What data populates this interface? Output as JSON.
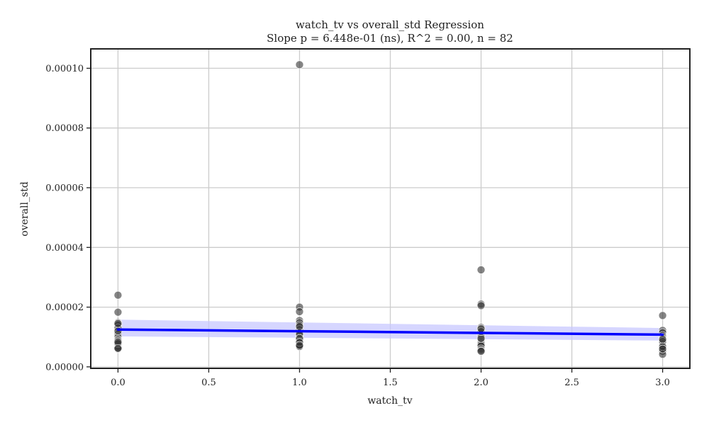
{
  "chart_data": {
    "type": "scatter",
    "title": "watch_tv vs overall_std Regression",
    "subtitle": "Slope p = 6.448e-01 (ns), R^2 = 0.00, n = 82",
    "xlabel": "watch_tv",
    "ylabel": "overall_std",
    "xlim": [
      -0.15,
      3.15
    ],
    "ylim": [
      -5e-07,
      0.0001065
    ],
    "xticks": [
      0.0,
      0.5,
      1.0,
      1.5,
      2.0,
      2.5,
      3.0
    ],
    "xtick_labels": [
      "0.0",
      "0.5",
      "1.0",
      "1.5",
      "2.0",
      "2.5",
      "3.0"
    ],
    "yticks": [
      0.0,
      2e-05,
      4e-05,
      6e-05,
      8e-05,
      0.0001
    ],
    "ytick_labels": [
      "0.00000",
      "0.00002",
      "0.00004",
      "0.00006",
      "0.00008",
      "0.00010"
    ],
    "grid": true,
    "colors": {
      "points": "#333333",
      "regression_line": "#0000ff",
      "confidence_band": "#c8c8ff",
      "grid": "#cccccc",
      "axes": "#222222"
    },
    "points": [
      {
        "x": 0,
        "y": 2.4e-05
      },
      {
        "x": 0,
        "y": 1.83e-05
      },
      {
        "x": 0,
        "y": 1.48e-05
      },
      {
        "x": 0,
        "y": 1.4e-05
      },
      {
        "x": 0,
        "y": 1.3e-05
      },
      {
        "x": 0,
        "y": 1.1e-05
      },
      {
        "x": 0,
        "y": 1e-05
      },
      {
        "x": 0,
        "y": 9.2e-06
      },
      {
        "x": 0,
        "y": 8.5e-06
      },
      {
        "x": 0,
        "y": 8e-06
      },
      {
        "x": 0,
        "y": 7.5e-06
      },
      {
        "x": 0,
        "y": 7e-06
      },
      {
        "x": 0,
        "y": 6.5e-06
      },
      {
        "x": 0,
        "y": 6e-06
      },
      {
        "x": 0,
        "y": 8.8e-06
      },
      {
        "x": 0,
        "y": 1.2e-05
      },
      {
        "x": 0,
        "y": 1.45e-05
      },
      {
        "x": 0,
        "y": 7.8e-06
      },
      {
        "x": 0,
        "y": 8.3e-06
      },
      {
        "x": 0,
        "y": 6.2e-06
      },
      {
        "x": 1,
        "y": 0.0001012
      },
      {
        "x": 1,
        "y": 2e-05
      },
      {
        "x": 1,
        "y": 1.85e-05
      },
      {
        "x": 1,
        "y": 1.55e-05
      },
      {
        "x": 1,
        "y": 1.48e-05
      },
      {
        "x": 1,
        "y": 1.4e-05
      },
      {
        "x": 1,
        "y": 1.25e-05
      },
      {
        "x": 1,
        "y": 1.15e-05
      },
      {
        "x": 1,
        "y": 1.05e-05
      },
      {
        "x": 1,
        "y": 9.8e-06
      },
      {
        "x": 1,
        "y": 9e-06
      },
      {
        "x": 1,
        "y": 8.5e-06
      },
      {
        "x": 1,
        "y": 8e-06
      },
      {
        "x": 1,
        "y": 7.5e-06
      },
      {
        "x": 1,
        "y": 7e-06
      },
      {
        "x": 1,
        "y": 6.8e-06
      },
      {
        "x": 1,
        "y": 1.1e-05
      },
      {
        "x": 1,
        "y": 9.5e-06
      },
      {
        "x": 1,
        "y": 1.35e-05
      },
      {
        "x": 1,
        "y": 8.2e-06
      },
      {
        "x": 1,
        "y": 7.2e-06
      },
      {
        "x": 2,
        "y": 3.25e-05
      },
      {
        "x": 2,
        "y": 2.1e-05
      },
      {
        "x": 2,
        "y": 2.05e-05
      },
      {
        "x": 2,
        "y": 1.32e-05
      },
      {
        "x": 2,
        "y": 1.25e-05
      },
      {
        "x": 2,
        "y": 1.2e-05
      },
      {
        "x": 2,
        "y": 1.15e-05
      },
      {
        "x": 2,
        "y": 1.1e-05
      },
      {
        "x": 2,
        "y": 1.05e-05
      },
      {
        "x": 2,
        "y": 1e-05
      },
      {
        "x": 2,
        "y": 9e-06
      },
      {
        "x": 2,
        "y": 8.5e-06
      },
      {
        "x": 2,
        "y": 8e-06
      },
      {
        "x": 2,
        "y": 7.5e-06
      },
      {
        "x": 2,
        "y": 7e-06
      },
      {
        "x": 2,
        "y": 6e-06
      },
      {
        "x": 2,
        "y": 5.5e-06
      },
      {
        "x": 2,
        "y": 5.2e-06
      },
      {
        "x": 2,
        "y": 9.5e-06
      },
      {
        "x": 2,
        "y": 1.18e-05
      },
      {
        "x": 2,
        "y": 1.28e-05
      },
      {
        "x": 3,
        "y": 1.72e-05
      },
      {
        "x": 3,
        "y": 1.22e-05
      },
      {
        "x": 3,
        "y": 1.15e-05
      },
      {
        "x": 3,
        "y": 1.05e-05
      },
      {
        "x": 3,
        "y": 1e-05
      },
      {
        "x": 3,
        "y": 9.5e-06
      },
      {
        "x": 3,
        "y": 8.8e-06
      },
      {
        "x": 3,
        "y": 8.2e-06
      },
      {
        "x": 3,
        "y": 7.8e-06
      },
      {
        "x": 3,
        "y": 7.4e-06
      },
      {
        "x": 3,
        "y": 7e-06
      },
      {
        "x": 3,
        "y": 6.6e-06
      },
      {
        "x": 3,
        "y": 6.2e-06
      },
      {
        "x": 3,
        "y": 5.8e-06
      },
      {
        "x": 3,
        "y": 5.2e-06
      },
      {
        "x": 3,
        "y": 4.2e-06
      },
      {
        "x": 3,
        "y": 8.5e-06
      },
      {
        "x": 3,
        "y": 6.8e-06
      },
      {
        "x": 3,
        "y": 6e-06
      },
      {
        "x": 3,
        "y": 9.2e-06
      }
    ],
    "regression": {
      "x": [
        0,
        3
      ],
      "y": [
        1.25e-05,
        1.08e-05
      ],
      "ci_lower": [
        1.02e-05,
        8.8e-06
      ],
      "ci_upper": [
        1.58e-05,
        1.3e-05
      ]
    }
  }
}
